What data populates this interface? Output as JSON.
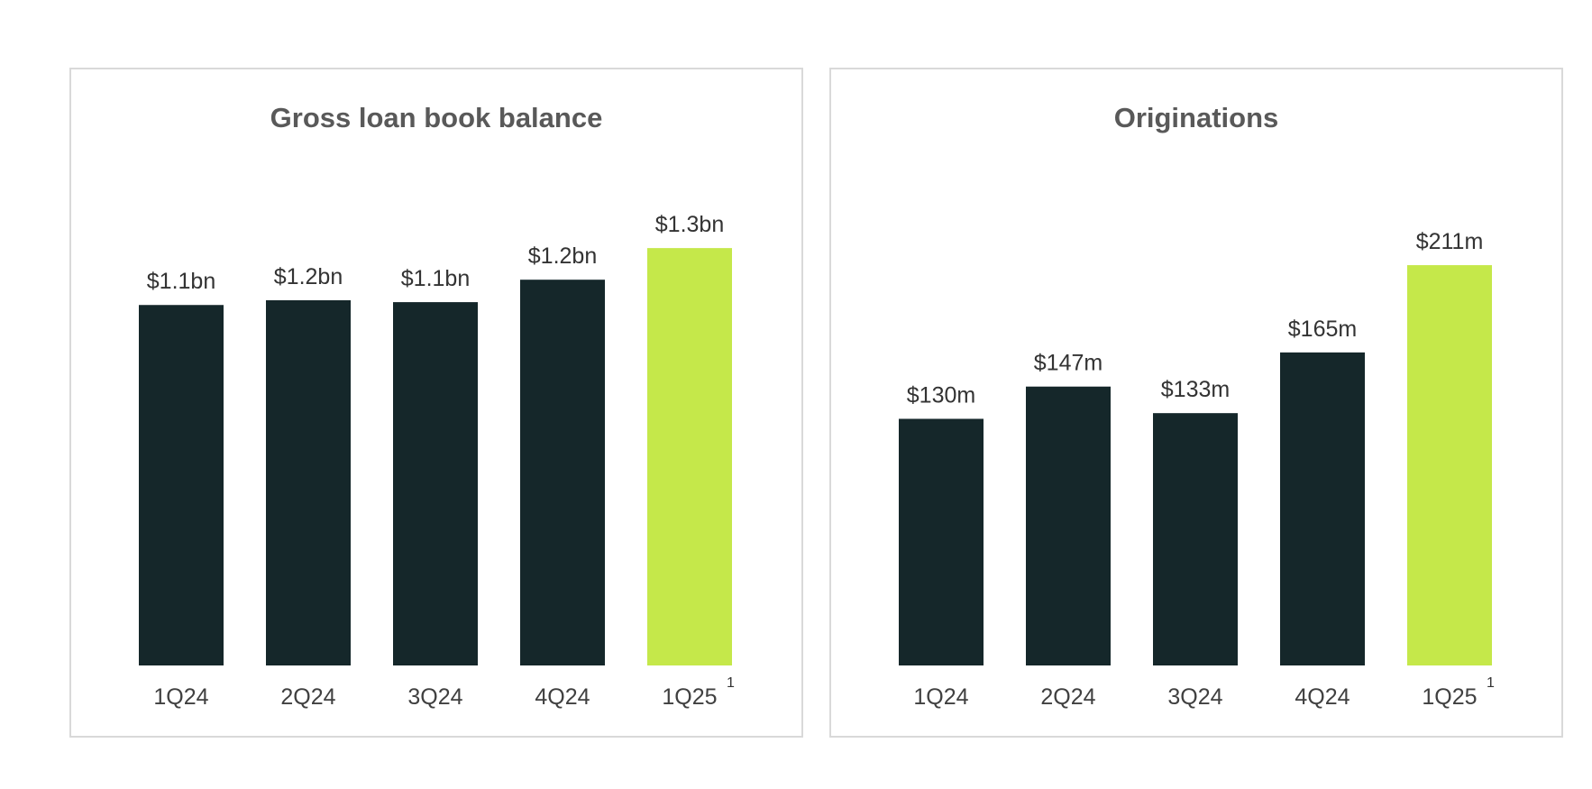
{
  "chart_data": [
    {
      "type": "bar",
      "title": "Gross loan book balance",
      "categories": [
        "1Q24",
        "2Q24",
        "3Q24",
        "4Q24",
        "1Q25"
      ],
      "category_notes": [
        null,
        null,
        null,
        null,
        "1"
      ],
      "values": [
        1.14,
        1.155,
        1.149,
        1.22,
        1.32
      ],
      "value_labels": [
        "$1.1bn",
        "$1.2bn",
        "$1.1bn",
        "$1.2bn",
        "$1.3bn"
      ],
      "colors": [
        "#15272a",
        "#15272a",
        "#15272a",
        "#15272a",
        "#c5e84a"
      ],
      "ylim": [
        0,
        1.5
      ]
    },
    {
      "type": "bar",
      "title": "Originations",
      "categories": [
        "1Q24",
        "2Q24",
        "3Q24",
        "4Q24",
        "1Q25"
      ],
      "category_notes": [
        null,
        null,
        null,
        null,
        "1"
      ],
      "values": [
        130,
        147,
        133,
        165,
        211
      ],
      "value_labels": [
        "$130m",
        "$147m",
        "$133m",
        "$165m",
        "$211m"
      ],
      "colors": [
        "#15272a",
        "#15272a",
        "#15272a",
        "#15272a",
        "#c5e84a"
      ],
      "ylim": [
        0,
        250
      ]
    }
  ]
}
